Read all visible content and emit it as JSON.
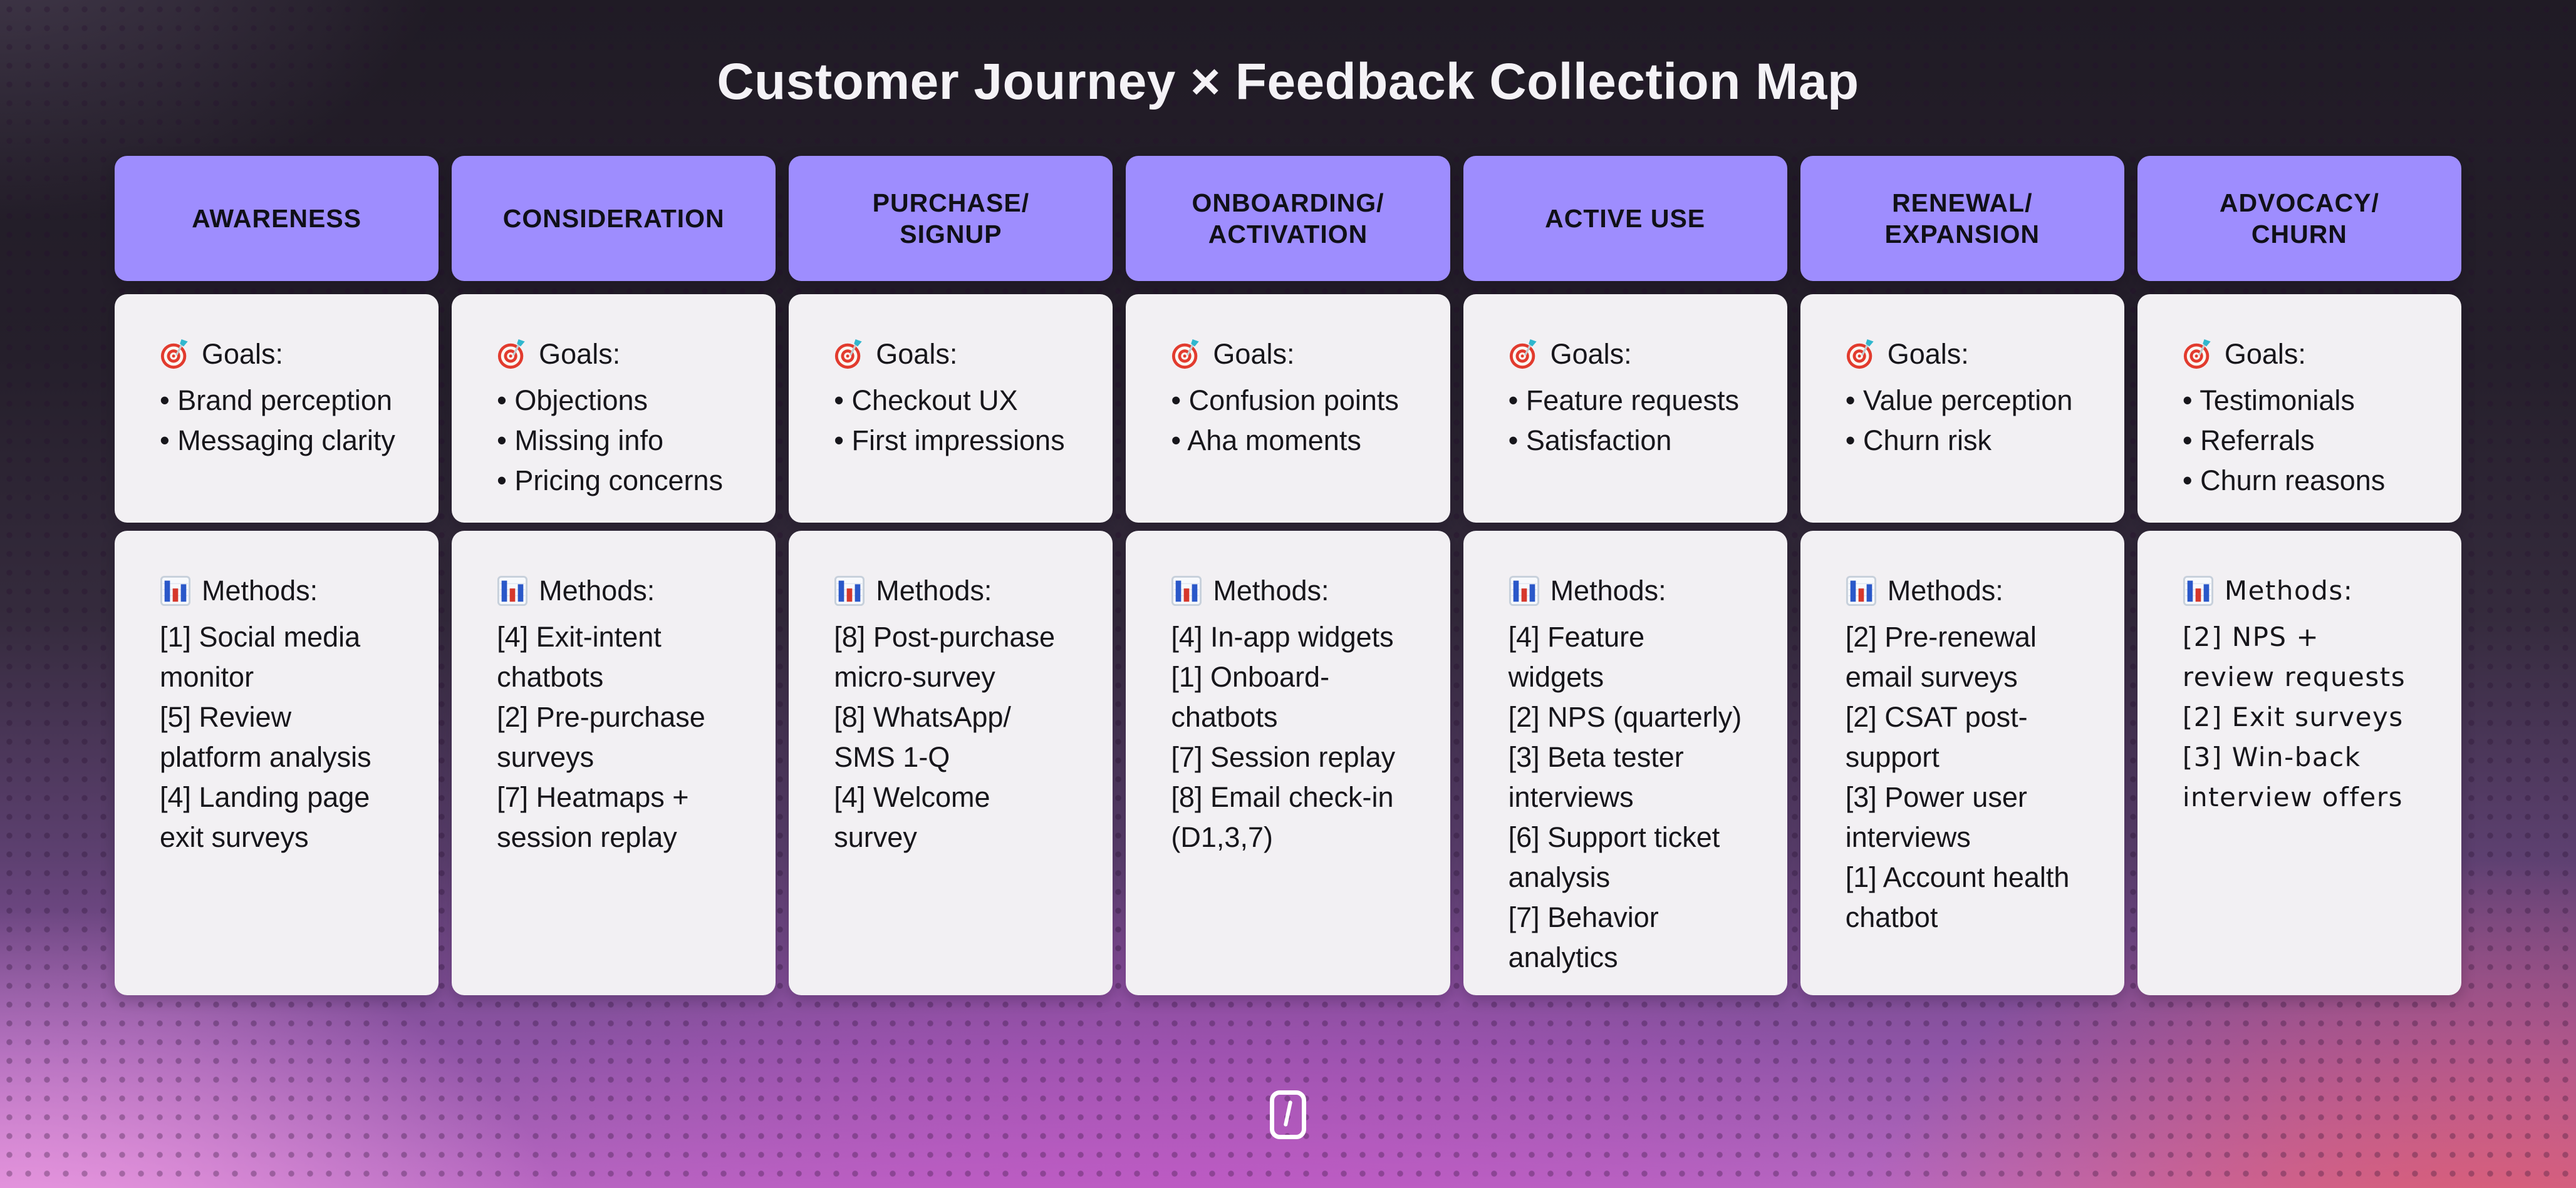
{
  "title": "Customer Journey × Feedback Collection Map",
  "labels": {
    "goals": "Goals:",
    "methods": "Methods:"
  },
  "icons": {
    "goals_icon": "target-icon",
    "methods_icon": "bar-chart-icon",
    "footer_icon": "backslash-logo-icon"
  },
  "colors": {
    "stage_header_bg": "#9E8DFE",
    "card_bg": "#F2F0F3",
    "card_text": "#17161B",
    "title_text": "#F4F2F6",
    "bg_top": "#201B25",
    "bg_mid_purple": "#8E54A6",
    "bg_bottom_left_pink": "#F3A2E6",
    "bg_bottom_magenta": "#C54CC7",
    "bg_bottom_right_coral": "#E45A5F",
    "logo_white": "#FFFFFF"
  },
  "columns": [
    {
      "stage": "AWARENESS",
      "goals": [
        "• Brand perception",
        "• Messaging clarity"
      ],
      "methods": [
        "[1] Social media monitor",
        "[5] Review platform analysis",
        "[4] Landing page exit surveys"
      ]
    },
    {
      "stage": "CONSIDERATION",
      "goals": [
        "• Objections",
        "• Missing info",
        "• Pricing concerns"
      ],
      "methods": [
        "[4] Exit-intent chatbots",
        "[2] Pre-purchase surveys",
        "[7] Heatmaps + session replay"
      ]
    },
    {
      "stage": "PURCHASE/\nSIGNUP",
      "goals": [
        "• Checkout UX",
        "• First impressions"
      ],
      "methods": [
        "[8] Post-purchase micro-survey",
        "[8] WhatsApp/ SMS 1-Q",
        "[4] Welcome survey"
      ]
    },
    {
      "stage": "ONBOARDING/\nACTIVATION",
      "goals": [
        "• Confusion points",
        "• Aha moments"
      ],
      "methods": [
        "[4] In-app widgets",
        "[1] Onboard-chatbots",
        "[7] Session replay",
        "[8] Email check-in (D1,3,7)"
      ]
    },
    {
      "stage": "ACTIVE USE",
      "goals": [
        "• Feature requests",
        "• Satisfaction"
      ],
      "methods": [
        "[4] Feature widgets",
        "[2] NPS (quarterly)",
        "[3] Beta tester interviews",
        "[6] Support ticket analysis",
        "[7] Behavior analytics"
      ]
    },
    {
      "stage": "RENEWAL/\nEXPANSION",
      "goals": [
        "• Value perception",
        "• Churn risk"
      ],
      "methods": [
        "[2] Pre-renewal email surveys",
        "[2] CSAT post-support",
        "[3] Power user interviews",
        "[1] Account health chatbot"
      ]
    },
    {
      "stage": "ADVOCACY/\nCHURN",
      "goals": [
        "• Testimonials",
        "• Referrals",
        "• Churn reasons"
      ],
      "methods": [
        "[2] NPS + review requests",
        "[2] Exit surveys",
        "[3] Win-back interview offers"
      ]
    }
  ]
}
